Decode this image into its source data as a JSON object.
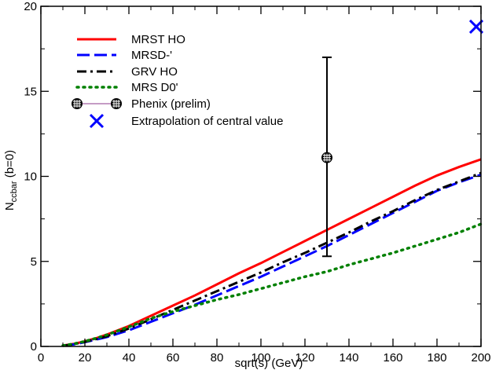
{
  "chart_data": {
    "type": "line",
    "title": "",
    "xlabel": "sqrt(s)  (GeV)",
    "ylabel_main": "N",
    "ylabel_sub": "ccbar",
    "ylabel_tail": " (b=0)",
    "xlim": [
      0,
      200
    ],
    "ylim": [
      0,
      20
    ],
    "xticks": [
      0,
      20,
      40,
      60,
      80,
      100,
      120,
      140,
      160,
      180,
      200
    ],
    "yticks": [
      0,
      5,
      10,
      15,
      20
    ],
    "xtick_labels": [
      "0",
      "20",
      "40",
      "60",
      "80",
      "100",
      "120",
      "140",
      "160",
      "180",
      "200"
    ],
    "ytick_labels": [
      "0",
      "5",
      "10",
      "15",
      "20"
    ],
    "grid": false,
    "legend_position": "top-left",
    "series": [
      {
        "name": "MRST HO",
        "color": "#ff0000",
        "style": "solid",
        "x": [
          10,
          15,
          20,
          25,
          30,
          40,
          50,
          60,
          70,
          80,
          90,
          100,
          110,
          120,
          130,
          140,
          150,
          160,
          170,
          180,
          190,
          200
        ],
        "y": [
          0.05,
          0.15,
          0.3,
          0.48,
          0.7,
          1.2,
          1.8,
          2.4,
          3.0,
          3.65,
          4.3,
          4.9,
          5.55,
          6.2,
          6.85,
          7.5,
          8.15,
          8.8,
          9.45,
          10.05,
          10.55,
          11.0
        ]
      },
      {
        "name": "MRSD-'",
        "color": "#0000ff",
        "style": "dashed",
        "x": [
          10,
          15,
          20,
          25,
          30,
          40,
          50,
          60,
          70,
          80,
          90,
          100,
          110,
          120,
          130,
          140,
          150,
          160,
          170,
          180,
          190,
          200
        ],
        "y": [
          0.04,
          0.12,
          0.25,
          0.4,
          0.55,
          0.95,
          1.45,
          1.95,
          2.45,
          3.0,
          3.55,
          4.1,
          4.7,
          5.3,
          5.9,
          6.55,
          7.2,
          7.85,
          8.5,
          9.15,
          9.65,
          10.1
        ]
      },
      {
        "name": "GRV HO",
        "color": "#000000",
        "style": "dashdot",
        "x": [
          10,
          15,
          20,
          25,
          30,
          40,
          50,
          60,
          70,
          80,
          90,
          100,
          110,
          120,
          130,
          140,
          150,
          160,
          170,
          180,
          190,
          200
        ],
        "y": [
          0.04,
          0.13,
          0.27,
          0.43,
          0.6,
          1.05,
          1.6,
          2.15,
          2.7,
          3.25,
          3.8,
          4.35,
          4.95,
          5.5,
          6.1,
          6.7,
          7.35,
          7.95,
          8.6,
          9.2,
          9.7,
          10.2
        ]
      },
      {
        "name": "MRS D0'",
        "color": "#008000",
        "style": "dotted",
        "x": [
          10,
          15,
          20,
          25,
          30,
          40,
          50,
          60,
          70,
          80,
          90,
          100,
          110,
          120,
          130,
          140,
          150,
          160,
          170,
          180,
          190,
          200
        ],
        "y": [
          0.05,
          0.15,
          0.3,
          0.48,
          0.68,
          1.15,
          1.65,
          2.05,
          2.4,
          2.75,
          3.05,
          3.4,
          3.75,
          4.1,
          4.4,
          4.8,
          5.15,
          5.5,
          5.9,
          6.3,
          6.7,
          7.2
        ]
      }
    ],
    "phenix": {
      "name": "Phenix (prelim)",
      "x": 130,
      "y": 11.1,
      "ylow": 5.3,
      "yhigh": 17.0,
      "color": "#000000",
      "line_color": "#8b3a8b"
    },
    "extrapolation": {
      "name": "Extrapolation of central value",
      "x": 200,
      "y": 18.8,
      "color": "#0000ff"
    }
  }
}
